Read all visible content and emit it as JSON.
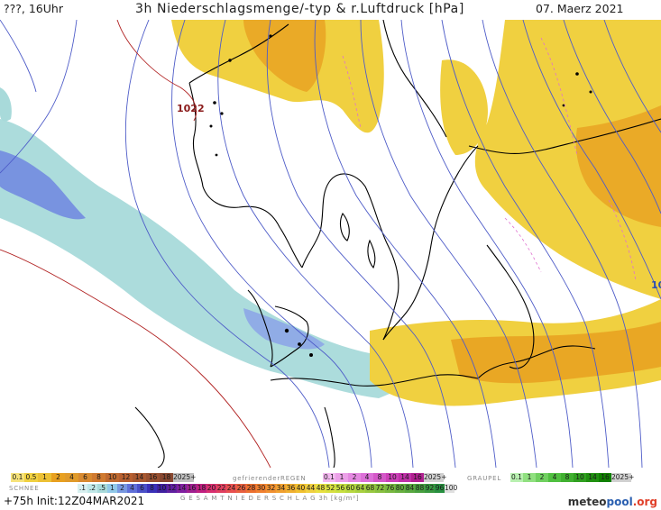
{
  "header": {
    "left": "???, 16Uhr",
    "title": "3h Niederschlagsmenge/-typ & r.Luftdruck [hPa]",
    "date": "07. Maerz 2021"
  },
  "map": {
    "isobar_labels": [
      "1022",
      "10"
    ]
  },
  "legend": {
    "rain_values": [
      "0.1",
      "0.5",
      "1",
      "2",
      "4",
      "6",
      "8",
      "10",
      "12",
      "14",
      "16",
      "18",
      "2025+"
    ],
    "freezing_rain_label": "gefrierenderREGEN",
    "freezing_values": [
      "0.1",
      "1",
      "2",
      "4",
      "8",
      "10",
      "14",
      "16",
      "2025+"
    ],
    "graupel_label": "GRAUPEL",
    "graupel_values": [
      "0.1",
      "1",
      "2",
      "4",
      "8",
      "10",
      "14",
      "16",
      "2025+"
    ],
    "snow_label": "SCHNEE",
    "snow_values": [
      ".1",
      ".2",
      ".5",
      "1",
      "2",
      "4",
      "6",
      "8",
      "10",
      "12",
      "14",
      "16",
      "18",
      "20",
      "22",
      "24",
      "26",
      "28",
      "30",
      "32",
      "34",
      "36",
      "40",
      "44",
      "48",
      "52",
      "56",
      "60",
      "64",
      "68",
      "72",
      "76",
      "80",
      "84",
      "88",
      "92",
      "96",
      "100"
    ],
    "total_label": "G E S A M T N I E D E R S C H L A G   3h   [kg/m²]"
  },
  "footer": {
    "run": "+75h  Init:12Z04MAR2021",
    "logo_main": "meteo",
    "logo_accent": "pool",
    "logo_tld": ".org"
  },
  "colors": {
    "rain_yellow": "#f0d040",
    "rain_orange": "#e8a020",
    "snow_cyan": "#a8dada",
    "snow_blue": "#6f86e0",
    "isobar_blue": "#4e5cc8",
    "isobar_red": "#b02020",
    "freezing_pink": "#e070d0"
  }
}
